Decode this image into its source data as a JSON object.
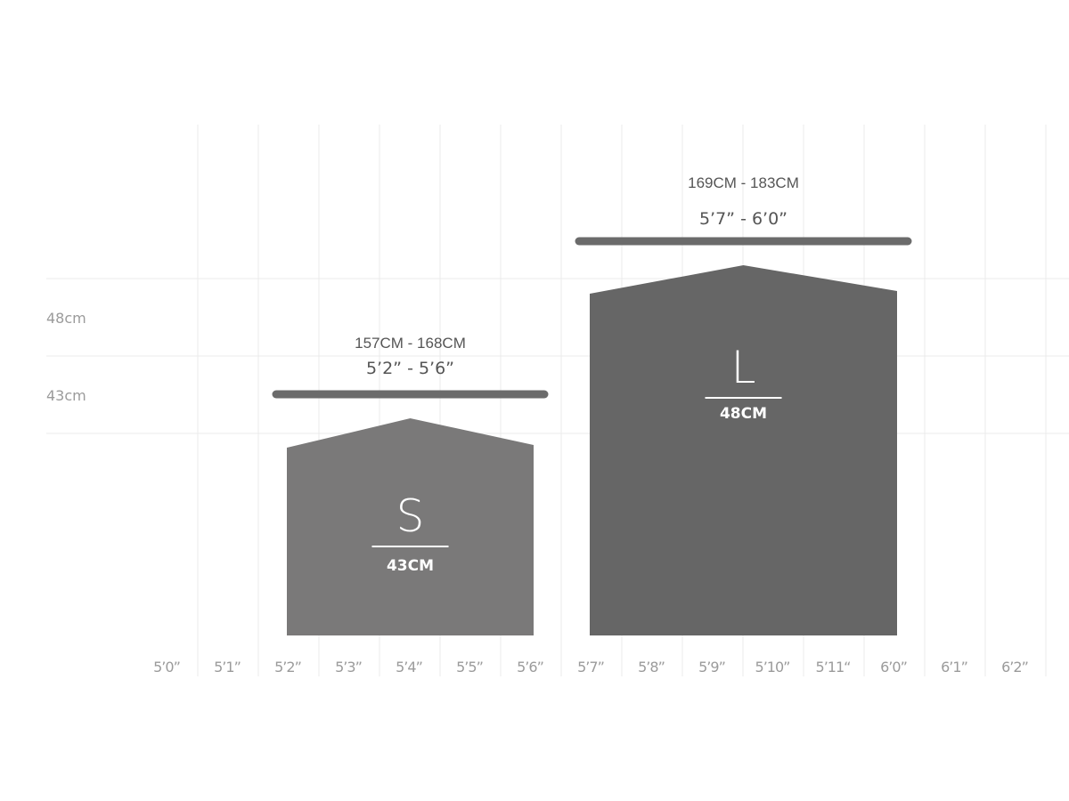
{
  "chart_data": {
    "type": "bar",
    "title": "",
    "x_ticks": [
      "5’0”",
      "5’1”",
      "5’2”",
      "5’3”",
      "5’4”",
      "5’5”",
      "5’6”",
      "5’7”",
      "5’8”",
      "5’9”",
      "5’10”",
      "5’11“",
      "6’0”",
      "6’1”",
      "6’2”"
    ],
    "y_ticks": [
      "48cm",
      "43cm"
    ],
    "grid": true,
    "series": [
      {
        "size": "S",
        "width_label": "43CM",
        "width_cm": 43,
        "range_cm": "157CM - 168CM",
        "range_ft": "5’2” - 5’6”",
        "from_tick": "5’2”",
        "to_tick": "5’6”",
        "color": "#7a7979"
      },
      {
        "size": "L",
        "width_label": "48CM",
        "width_cm": 48,
        "range_cm": "169CM - 183CM",
        "range_ft": "5’7” - 6’0”",
        "from_tick": "5’7”",
        "to_tick": "6’0”",
        "color": "#666666"
      }
    ],
    "range_bar_color": "#6b6b6b",
    "grid_color": "#ebebeb"
  }
}
